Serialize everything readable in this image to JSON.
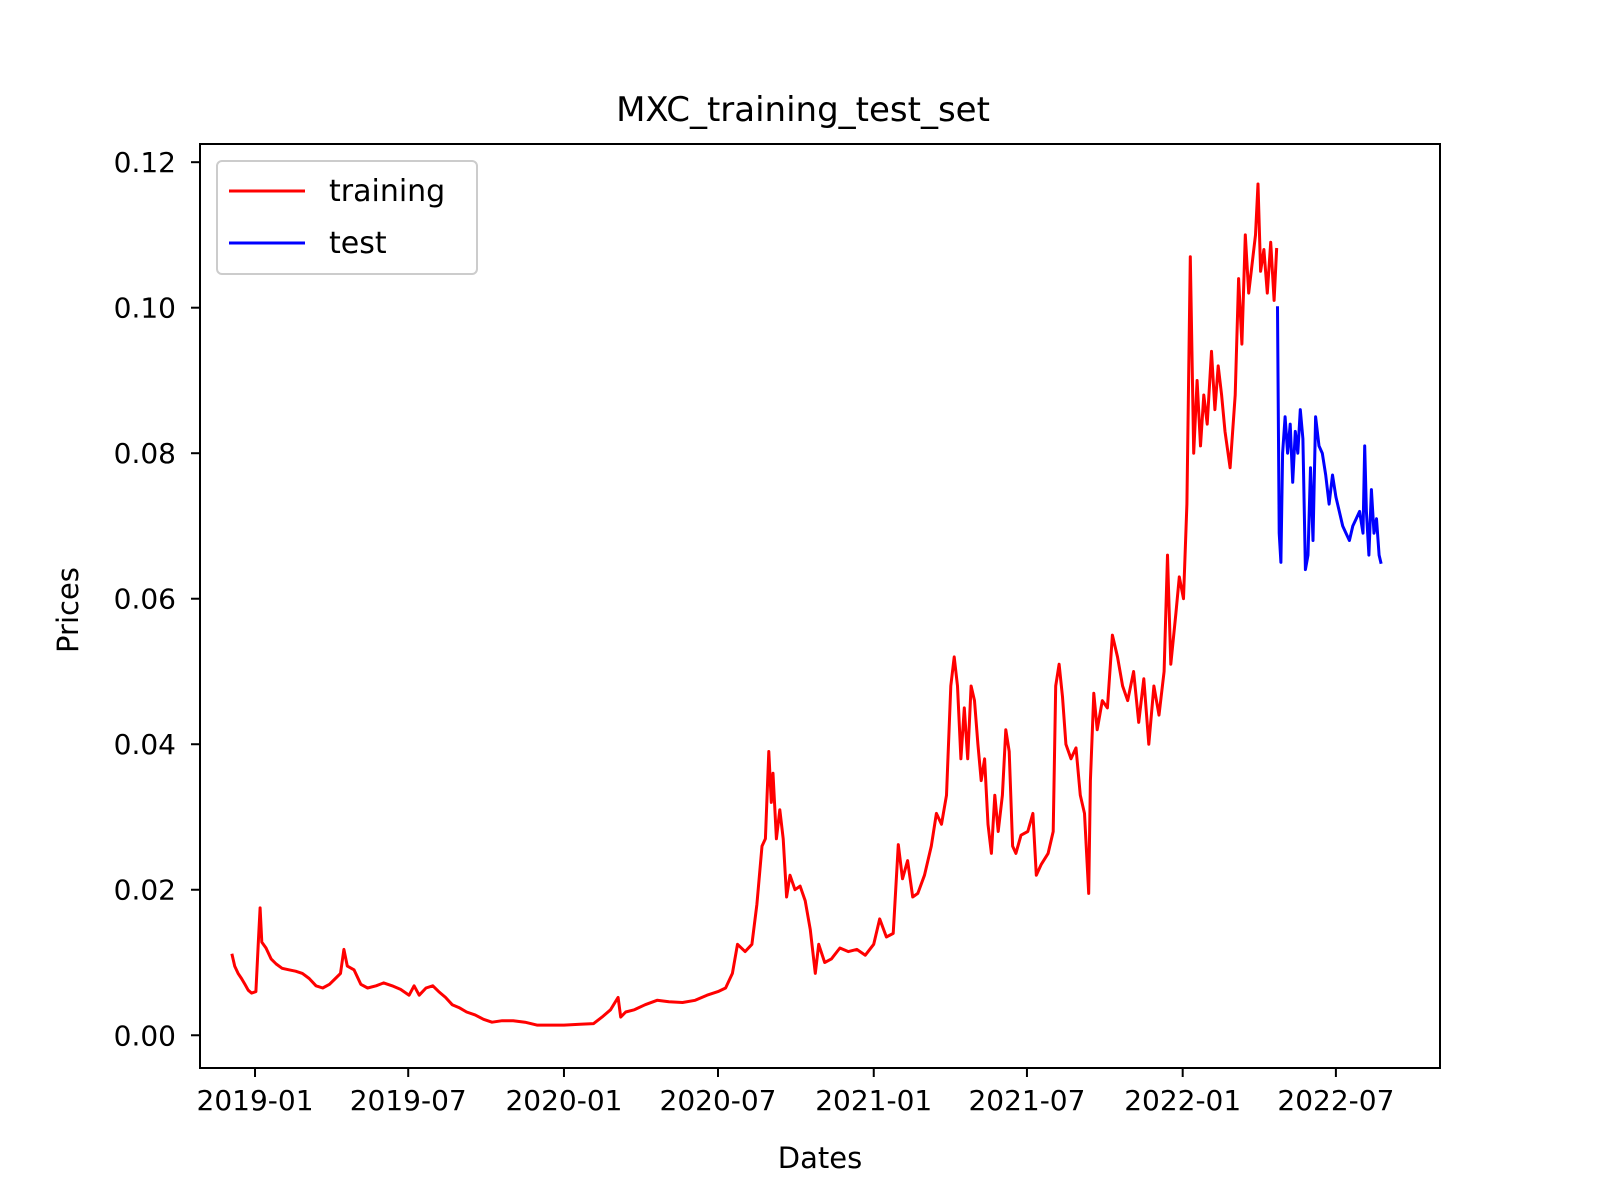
{
  "chart_data": {
    "type": "line",
    "title": "MXC_training_test_set",
    "xlabel": "Dates",
    "ylabel": "Prices",
    "xlim": [
      "2018-10-28",
      "2022-11-01"
    ],
    "ylim": [
      -0.0045,
      0.1225
    ],
    "x_ticks": [
      "2019-01-01",
      "2019-07-01",
      "2020-01-01",
      "2020-07-01",
      "2021-01-01",
      "2021-07-01",
      "2022-01-01",
      "2022-07-01"
    ],
    "x_tick_labels": [
      "2019-01",
      "2019-07",
      "2020-01",
      "2020-07",
      "2021-01",
      "2021-07",
      "2022-01",
      "2022-07"
    ],
    "y_ticks": [
      0.0,
      0.02,
      0.04,
      0.06,
      0.08,
      0.1,
      0.12
    ],
    "y_tick_labels": [
      "0.00",
      "0.02",
      "0.04",
      "0.06",
      "0.08",
      "0.10",
      "0.12"
    ],
    "grid": false,
    "legend": {
      "position": "top-left"
    },
    "series": [
      {
        "name": "training",
        "color": "#ff0000",
        "points": [
          [
            "2018-12-05",
            0.011
          ],
          [
            "2018-12-08",
            0.0095
          ],
          [
            "2018-12-12",
            0.0085
          ],
          [
            "2018-12-16",
            0.0078
          ],
          [
            "2018-12-20",
            0.007
          ],
          [
            "2018-12-24",
            0.0062
          ],
          [
            "2018-12-28",
            0.0058
          ],
          [
            "2019-01-02",
            0.006
          ],
          [
            "2019-01-05",
            0.013
          ],
          [
            "2019-01-07",
            0.0175
          ],
          [
            "2019-01-09",
            0.0128
          ],
          [
            "2019-01-14",
            0.012
          ],
          [
            "2019-01-20",
            0.0105
          ],
          [
            "2019-01-26",
            0.0098
          ],
          [
            "2019-02-02",
            0.0092
          ],
          [
            "2019-02-10",
            0.009
          ],
          [
            "2019-02-18",
            0.0088
          ],
          [
            "2019-02-26",
            0.0085
          ],
          [
            "2019-03-06",
            0.0078
          ],
          [
            "2019-03-14",
            0.0068
          ],
          [
            "2019-03-22",
            0.0065
          ],
          [
            "2019-03-30",
            0.007
          ],
          [
            "2019-04-06",
            0.0078
          ],
          [
            "2019-04-12",
            0.0085
          ],
          [
            "2019-04-16",
            0.0118
          ],
          [
            "2019-04-20",
            0.0095
          ],
          [
            "2019-04-28",
            0.009
          ],
          [
            "2019-05-06",
            0.007
          ],
          [
            "2019-05-14",
            0.0065
          ],
          [
            "2019-05-24",
            0.0068
          ],
          [
            "2019-06-02",
            0.0072
          ],
          [
            "2019-06-12",
            0.0068
          ],
          [
            "2019-06-22",
            0.0063
          ],
          [
            "2019-07-02",
            0.0055
          ],
          [
            "2019-07-08",
            0.0068
          ],
          [
            "2019-07-14",
            0.0055
          ],
          [
            "2019-07-22",
            0.0065
          ],
          [
            "2019-07-30",
            0.0068
          ],
          [
            "2019-08-06",
            0.006
          ],
          [
            "2019-08-14",
            0.0052
          ],
          [
            "2019-08-22",
            0.0042
          ],
          [
            "2019-08-30",
            0.0038
          ],
          [
            "2019-09-08",
            0.0032
          ],
          [
            "2019-09-18",
            0.0028
          ],
          [
            "2019-09-28",
            0.0022
          ],
          [
            "2019-10-08",
            0.0018
          ],
          [
            "2019-10-20",
            0.002
          ],
          [
            "2019-11-02",
            0.002
          ],
          [
            "2019-11-16",
            0.0018
          ],
          [
            "2019-11-30",
            0.0014
          ],
          [
            "2019-12-14",
            0.0014
          ],
          [
            "2020-01-01",
            0.0014
          ],
          [
            "2020-01-20",
            0.0015
          ],
          [
            "2020-02-05",
            0.0016
          ],
          [
            "2020-02-15",
            0.0025
          ],
          [
            "2020-02-25",
            0.0035
          ],
          [
            "2020-03-05",
            0.0052
          ],
          [
            "2020-03-08",
            0.0025
          ],
          [
            "2020-03-14",
            0.0032
          ],
          [
            "2020-03-24",
            0.0035
          ],
          [
            "2020-04-06",
            0.0042
          ],
          [
            "2020-04-20",
            0.0048
          ],
          [
            "2020-05-04",
            0.0046
          ],
          [
            "2020-05-20",
            0.0045
          ],
          [
            "2020-06-04",
            0.0048
          ],
          [
            "2020-06-18",
            0.0055
          ],
          [
            "2020-07-01",
            0.006
          ],
          [
            "2020-07-10",
            0.0065
          ],
          [
            "2020-07-18",
            0.0085
          ],
          [
            "2020-07-24",
            0.0125
          ],
          [
            "2020-08-02",
            0.0115
          ],
          [
            "2020-08-10",
            0.0125
          ],
          [
            "2020-08-16",
            0.018
          ],
          [
            "2020-08-22",
            0.026
          ],
          [
            "2020-08-26",
            0.027
          ],
          [
            "2020-08-30",
            0.039
          ],
          [
            "2020-09-02",
            0.032
          ],
          [
            "2020-09-04",
            0.036
          ],
          [
            "2020-09-08",
            0.027
          ],
          [
            "2020-09-12",
            0.031
          ],
          [
            "2020-09-16",
            0.027
          ],
          [
            "2020-09-20",
            0.019
          ],
          [
            "2020-09-24",
            0.022
          ],
          [
            "2020-09-30",
            0.02
          ],
          [
            "2020-10-06",
            0.0205
          ],
          [
            "2020-10-12",
            0.0185
          ],
          [
            "2020-10-18",
            0.0145
          ],
          [
            "2020-10-24",
            0.0085
          ],
          [
            "2020-10-28",
            0.0125
          ],
          [
            "2020-11-04",
            0.01
          ],
          [
            "2020-11-12",
            0.0105
          ],
          [
            "2020-11-22",
            0.012
          ],
          [
            "2020-12-02",
            0.0115
          ],
          [
            "2020-12-12",
            0.0118
          ],
          [
            "2020-12-22",
            0.011
          ],
          [
            "2021-01-01",
            0.0125
          ],
          [
            "2021-01-08",
            0.016
          ],
          [
            "2021-01-16",
            0.0135
          ],
          [
            "2021-01-24",
            0.014
          ],
          [
            "2021-01-30",
            0.0262
          ],
          [
            "2021-02-04",
            0.0215
          ],
          [
            "2021-02-10",
            0.024
          ],
          [
            "2021-02-16",
            0.019
          ],
          [
            "2021-02-22",
            0.0195
          ],
          [
            "2021-03-02",
            0.022
          ],
          [
            "2021-03-10",
            0.026
          ],
          [
            "2021-03-16",
            0.0305
          ],
          [
            "2021-03-22",
            0.029
          ],
          [
            "2021-03-28",
            0.033
          ],
          [
            "2021-04-02",
            0.048
          ],
          [
            "2021-04-06",
            0.052
          ],
          [
            "2021-04-10",
            0.048
          ],
          [
            "2021-04-14",
            0.038
          ],
          [
            "2021-04-18",
            0.045
          ],
          [
            "2021-04-22",
            0.038
          ],
          [
            "2021-04-26",
            0.048
          ],
          [
            "2021-04-30",
            0.046
          ],
          [
            "2021-05-04",
            0.04
          ],
          [
            "2021-05-08",
            0.035
          ],
          [
            "2021-05-12",
            0.038
          ],
          [
            "2021-05-16",
            0.029
          ],
          [
            "2021-05-20",
            0.025
          ],
          [
            "2021-05-24",
            0.033
          ],
          [
            "2021-05-28",
            0.028
          ],
          [
            "2021-06-02",
            0.033
          ],
          [
            "2021-06-06",
            0.042
          ],
          [
            "2021-06-10",
            0.039
          ],
          [
            "2021-06-14",
            0.026
          ],
          [
            "2021-06-18",
            0.025
          ],
          [
            "2021-06-24",
            0.0275
          ],
          [
            "2021-07-02",
            0.028
          ],
          [
            "2021-07-08",
            0.0305
          ],
          [
            "2021-07-12",
            0.022
          ],
          [
            "2021-07-18",
            0.0235
          ],
          [
            "2021-07-26",
            0.025
          ],
          [
            "2021-08-01",
            0.028
          ],
          [
            "2021-08-04",
            0.048
          ],
          [
            "2021-08-08",
            0.051
          ],
          [
            "2021-08-12",
            0.0465
          ],
          [
            "2021-08-16",
            0.04
          ],
          [
            "2021-08-22",
            0.038
          ],
          [
            "2021-08-28",
            0.0395
          ],
          [
            "2021-09-02",
            0.033
          ],
          [
            "2021-09-07",
            0.0305
          ],
          [
            "2021-09-12",
            0.0195
          ],
          [
            "2021-09-14",
            0.035
          ],
          [
            "2021-09-18",
            0.047
          ],
          [
            "2021-09-22",
            0.042
          ],
          [
            "2021-09-28",
            0.046
          ],
          [
            "2021-10-04",
            0.045
          ],
          [
            "2021-10-10",
            0.055
          ],
          [
            "2021-10-16",
            0.052
          ],
          [
            "2021-10-22",
            0.048
          ],
          [
            "2021-10-28",
            0.046
          ],
          [
            "2021-11-04",
            0.05
          ],
          [
            "2021-11-10",
            0.043
          ],
          [
            "2021-11-16",
            0.049
          ],
          [
            "2021-11-22",
            0.04
          ],
          [
            "2021-11-28",
            0.048
          ],
          [
            "2021-12-04",
            0.044
          ],
          [
            "2021-12-10",
            0.05
          ],
          [
            "2021-12-14",
            0.066
          ],
          [
            "2021-12-18",
            0.051
          ],
          [
            "2021-12-24",
            0.058
          ],
          [
            "2021-12-28",
            0.063
          ],
          [
            "2022-01-02",
            0.06
          ],
          [
            "2022-01-06",
            0.073
          ],
          [
            "2022-01-10",
            0.107
          ],
          [
            "2022-01-14",
            0.08
          ],
          [
            "2022-01-18",
            0.09
          ],
          [
            "2022-01-22",
            0.081
          ],
          [
            "2022-01-26",
            0.088
          ],
          [
            "2022-01-30",
            0.084
          ],
          [
            "2022-02-04",
            0.094
          ],
          [
            "2022-02-08",
            0.086
          ],
          [
            "2022-02-12",
            0.092
          ],
          [
            "2022-02-16",
            0.088
          ],
          [
            "2022-02-20",
            0.083
          ],
          [
            "2022-02-26",
            0.078
          ],
          [
            "2022-03-04",
            0.088
          ],
          [
            "2022-03-08",
            0.104
          ],
          [
            "2022-03-12",
            0.095
          ],
          [
            "2022-03-16",
            0.11
          ],
          [
            "2022-03-20",
            0.102
          ],
          [
            "2022-03-24",
            0.106
          ],
          [
            "2022-03-28",
            0.11
          ],
          [
            "2022-03-31",
            0.117
          ],
          [
            "2022-04-03",
            0.105
          ],
          [
            "2022-04-07",
            0.108
          ],
          [
            "2022-04-11",
            0.102
          ],
          [
            "2022-04-15",
            0.109
          ],
          [
            "2022-04-19",
            0.101
          ],
          [
            "2022-04-22",
            0.108
          ]
        ]
      },
      {
        "name": "test",
        "color": "#0000ff",
        "points": [
          [
            "2022-04-23",
            0.1
          ],
          [
            "2022-04-25",
            0.069
          ],
          [
            "2022-04-27",
            0.065
          ],
          [
            "2022-04-29",
            0.08
          ],
          [
            "2022-05-02",
            0.085
          ],
          [
            "2022-05-05",
            0.08
          ],
          [
            "2022-05-08",
            0.084
          ],
          [
            "2022-05-11",
            0.076
          ],
          [
            "2022-05-14",
            0.083
          ],
          [
            "2022-05-17",
            0.08
          ],
          [
            "2022-05-20",
            0.086
          ],
          [
            "2022-05-23",
            0.082
          ],
          [
            "2022-05-26",
            0.064
          ],
          [
            "2022-05-29",
            0.066
          ],
          [
            "2022-06-01",
            0.078
          ],
          [
            "2022-06-04",
            0.068
          ],
          [
            "2022-06-07",
            0.085
          ],
          [
            "2022-06-11",
            0.081
          ],
          [
            "2022-06-15",
            0.08
          ],
          [
            "2022-06-19",
            0.077
          ],
          [
            "2022-06-23",
            0.073
          ],
          [
            "2022-06-27",
            0.077
          ],
          [
            "2022-07-01",
            0.074
          ],
          [
            "2022-07-05",
            0.072
          ],
          [
            "2022-07-09",
            0.07
          ],
          [
            "2022-07-13",
            0.069
          ],
          [
            "2022-07-17",
            0.068
          ],
          [
            "2022-07-21",
            0.07
          ],
          [
            "2022-07-25",
            0.071
          ],
          [
            "2022-07-29",
            0.072
          ],
          [
            "2022-08-02",
            0.069
          ],
          [
            "2022-08-04",
            0.081
          ],
          [
            "2022-08-06",
            0.072
          ],
          [
            "2022-08-09",
            0.066
          ],
          [
            "2022-08-12",
            0.075
          ],
          [
            "2022-08-15",
            0.069
          ],
          [
            "2022-08-18",
            0.071
          ],
          [
            "2022-08-21",
            0.066
          ],
          [
            "2022-08-23",
            0.065
          ]
        ]
      }
    ]
  }
}
